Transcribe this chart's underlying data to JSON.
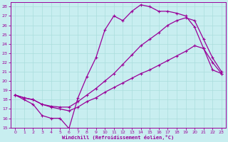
{
  "xlabel": "Windchill (Refroidissement éolien,°C)",
  "bg_color": "#c8eef0",
  "line_color": "#990099",
  "grid_color": "#aadddd",
  "xlim": [
    -0.5,
    23.5
  ],
  "ylim": [
    15,
    28.5
  ],
  "yticks": [
    15,
    16,
    17,
    18,
    19,
    20,
    21,
    22,
    23,
    24,
    25,
    26,
    27,
    28
  ],
  "xticks": [
    0,
    1,
    2,
    3,
    4,
    5,
    6,
    7,
    8,
    9,
    10,
    11,
    12,
    13,
    14,
    15,
    16,
    17,
    18,
    19,
    20,
    21,
    22,
    23
  ],
  "line1_y": [
    18.5,
    18.0,
    17.5,
    16.3,
    16.0,
    16.0,
    14.9,
    18.2,
    20.5,
    22.5,
    25.5,
    27.0,
    26.5,
    27.5,
    28.2,
    28.0,
    27.5,
    27.5,
    27.3,
    27.0,
    25.8,
    23.5,
    21.2,
    20.8
  ],
  "line2_y": [
    18.5,
    18.2,
    18.0,
    17.5,
    17.3,
    17.2,
    17.2,
    17.8,
    18.5,
    19.2,
    20.0,
    20.8,
    21.8,
    22.8,
    23.8,
    24.5,
    25.2,
    26.0,
    26.5,
    26.8,
    26.5,
    24.5,
    22.5,
    21.0
  ],
  "line3_y": [
    18.5,
    18.2,
    18.0,
    17.5,
    17.2,
    17.0,
    16.8,
    17.2,
    17.8,
    18.2,
    18.8,
    19.3,
    19.8,
    20.3,
    20.8,
    21.2,
    21.7,
    22.2,
    22.7,
    23.2,
    23.8,
    23.5,
    22.0,
    20.8
  ]
}
